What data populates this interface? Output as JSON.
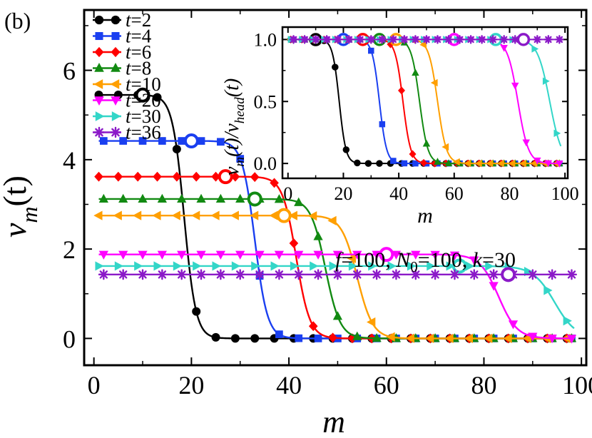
{
  "panel_label": "(b)",
  "chart_data": [
    {
      "id": "main",
      "type": "line",
      "xlabel": "m",
      "ylabel_main": "v",
      "ylabel_sub": "m",
      "ylabel_arg": "(t)",
      "xlim": [
        -2,
        101
      ],
      "ylim": [
        -0.6,
        7.35
      ],
      "xticks": [
        0,
        20,
        40,
        60,
        80,
        100
      ],
      "yticks": [
        0,
        2,
        4,
        6
      ],
      "annotation": "f=100, N0=100, k=30",
      "annotation_parts": [
        "f",
        "=100, ",
        "N",
        "0",
        "=100, ",
        "k",
        "=30"
      ],
      "legend": {
        "position": "top-left",
        "title_var": "t"
      },
      "series": [
        {
          "name": "t=2",
          "t": "2",
          "color": "#000000",
          "marker": "circle",
          "plateau": 5.45,
          "front": 18.5,
          "width": 1.2,
          "open_x": 10
        },
        {
          "name": "t=4",
          "t": "4",
          "color": "#1a3ff0",
          "marker": "square",
          "plateau": 4.42,
          "front": 33.0,
          "width": 1.3,
          "open_x": 20
        },
        {
          "name": "t=6",
          "t": "6",
          "color": "#ff0000",
          "marker": "diamond",
          "plateau": 3.62,
          "front": 41.5,
          "width": 1.4,
          "open_x": 27
        },
        {
          "name": "t=8",
          "t": "8",
          "color": "#128a12",
          "marker": "triangle-up",
          "plateau": 3.12,
          "front": 47.5,
          "width": 1.5,
          "open_x": 33
        },
        {
          "name": "t=10",
          "t": "10",
          "color": "#ff9f00",
          "marker": "triangle-left",
          "plateau": 2.75,
          "front": 54.0,
          "width": 1.6,
          "open_x": 39
        },
        {
          "name": "t=20",
          "t": "20",
          "color": "#ff00ff",
          "marker": "triangle-down",
          "plateau": 1.88,
          "front": 83.0,
          "width": 1.9,
          "open_x": 60
        },
        {
          "name": "t=30",
          "t": "30",
          "color": "#33d6c8",
          "marker": "triangle-right",
          "plateau": 1.62,
          "front": 94.5,
          "width": 2.2,
          "open_x": 75
        },
        {
          "name": "t=36",
          "t": "36",
          "color": "#8b1ac8",
          "marker": "asterisk",
          "plateau": 1.43,
          "front": 130,
          "width": 3.0,
          "open_x": 85
        }
      ]
    },
    {
      "id": "inset",
      "type": "line",
      "xlabel": "m",
      "ylabel": "v_m(t)/v_head(t)",
      "ylabel_parts": [
        "v",
        "m",
        "(t)/v",
        "head",
        "(t)"
      ],
      "xlim": [
        -2,
        101
      ],
      "ylim": [
        -0.12,
        1.1
      ],
      "xticks": [
        0,
        20,
        40,
        60,
        80,
        100
      ],
      "yticks": [
        0.0,
        0.5,
        1.0
      ],
      "ytick_labels": [
        "0.0",
        "0.5",
        "1.0"
      ],
      "series_note": "normalized versions of the main-panel series (v_head = plateau value)"
    }
  ]
}
